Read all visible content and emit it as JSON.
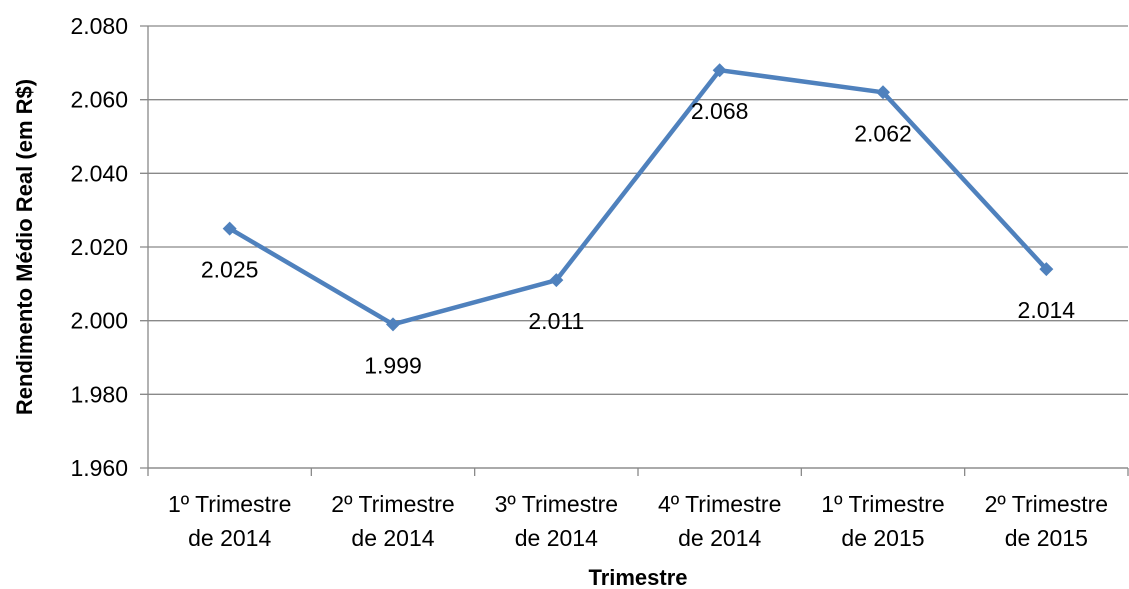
{
  "chart_data": {
    "type": "line",
    "categories": [
      "1º Trimestre de 2014",
      "2º Trimestre de 2014",
      "3º Trimestre de 2014",
      "4º Trimestre de 2014",
      "1º Trimestre de 2015",
      "2º Trimestre de 2015"
    ],
    "values": [
      2025,
      1999,
      2011,
      2068,
      2062,
      2014
    ],
    "value_labels": [
      "2.025",
      "1.999",
      "2.011",
      "2.068",
      "2.062",
      "2.014"
    ],
    "color": "#4f81bd",
    "xlabel": "Trimestre",
    "ylabel": "Rendimento Médio Real (em R$)",
    "ylim": [
      1960,
      2080
    ],
    "yticks": [
      {
        "value": 1960,
        "label": "1.960"
      },
      {
        "value": 1980,
        "label": "1.980"
      },
      {
        "value": 2000,
        "label": "2.000"
      },
      {
        "value": 2020,
        "label": "2.020"
      },
      {
        "value": 2040,
        "label": "2.040"
      },
      {
        "value": 2060,
        "label": "2.060"
      },
      {
        "value": 2080,
        "label": "2.080"
      }
    ],
    "grid": true
  }
}
